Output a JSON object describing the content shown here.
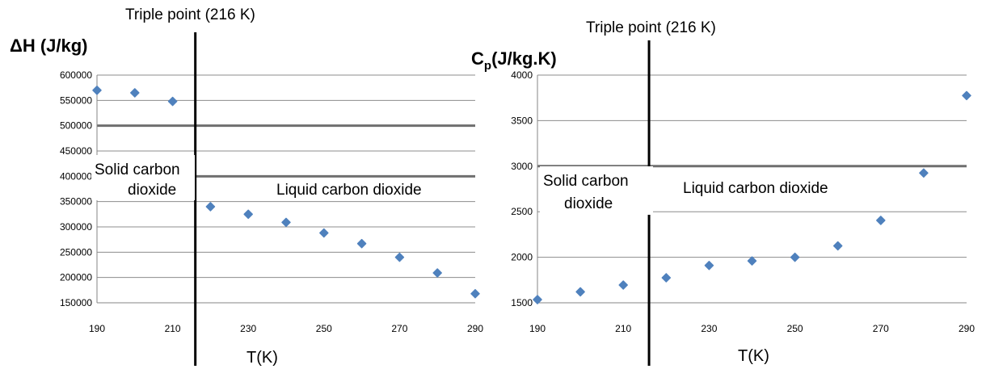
{
  "chart_data": [
    {
      "type": "scatter",
      "title": "Triple point (216 K)",
      "ylabel": "ΔH (J/kg)",
      "xlabel": "T(K)",
      "xlim": [
        190,
        290
      ],
      "ylim": [
        150000,
        600000
      ],
      "x_ticks": [
        "190",
        "210",
        "230",
        "250",
        "270",
        "290"
      ],
      "y_ticks": [
        "150000",
        "200000",
        "250000",
        "300000",
        "350000",
        "400000",
        "450000",
        "500000",
        "550000",
        "600000"
      ],
      "grid": true,
      "marker_color": "#4f81bd",
      "triple_point_x": 216,
      "annotations": [
        {
          "lines": [
            "Solid carbon",
            "dioxide"
          ]
        },
        {
          "lines": [
            "Liquid carbon dioxide"
          ]
        }
      ],
      "series": [
        {
          "x": [
            190,
            200,
            210,
            220,
            230,
            240,
            250,
            260,
            270,
            280,
            290
          ],
          "y": [
            570000,
            565000,
            548000,
            340000,
            325000,
            309000,
            288000,
            267000,
            240000,
            209000,
            168000
          ]
        }
      ]
    },
    {
      "type": "scatter",
      "title": "Triple point (216 K)",
      "ylabel_main": "C",
      "ylabel_sub": "p",
      "ylabel_rest": "(J/kg.K)",
      "xlabel": "T(K)",
      "xlim": [
        190,
        290
      ],
      "ylim": [
        1500,
        4000
      ],
      "x_ticks": [
        "190",
        "210",
        "230",
        "250",
        "270",
        "290"
      ],
      "y_ticks": [
        "1500",
        "2000",
        "2500",
        "3000",
        "3500",
        "4000"
      ],
      "grid": true,
      "marker_color": "#4f81bd",
      "triple_point_x": 216,
      "annotations": [
        {
          "lines": [
            "Solid carbon",
            "dioxide"
          ]
        },
        {
          "lines": [
            "Liquid carbon dioxide"
          ]
        }
      ],
      "series": [
        {
          "x": [
            190,
            200,
            210,
            220,
            230,
            240,
            250,
            260,
            270,
            280,
            290
          ],
          "y": [
            1535,
            1620,
            1695,
            1775,
            1910,
            1960,
            2000,
            2125,
            2405,
            2925,
            3775
          ]
        }
      ]
    }
  ]
}
